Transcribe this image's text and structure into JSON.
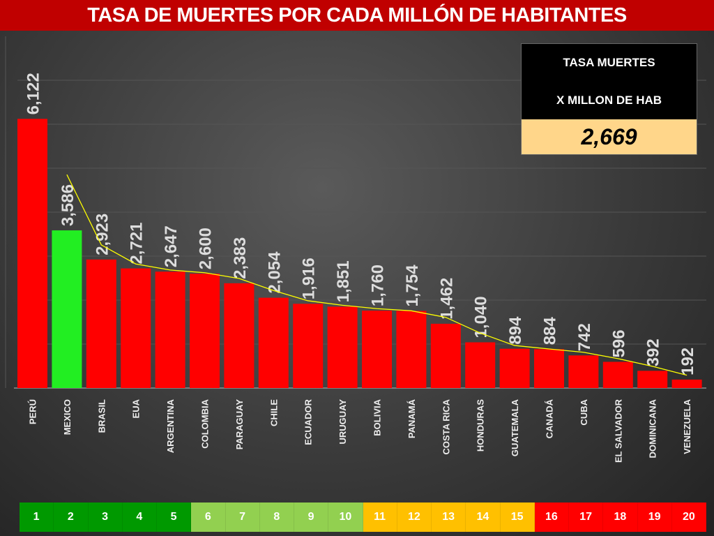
{
  "title": "TASA DE MUERTES POR CADA MILLÓN DE HABITANTES",
  "kpi": {
    "line1": "TASA MUERTES",
    "line2": "X MILLON DE HAB",
    "value": "2,669",
    "value_bg": "#ffd68a"
  },
  "chart_data": {
    "type": "bar",
    "title": "TASA DE MUERTES POR CADA MILLÓN DE HABITANTES",
    "categories": [
      "PERÚ",
      "MEXICO",
      "BRASIL",
      "EUA",
      "ARGENTINA",
      "COLOMBIA",
      "PARAGUAY",
      "CHILE",
      "ECUADOR",
      "URUGUAY",
      "BOLIVIA",
      "PANAMÁ",
      "COSTA RICA",
      "HONDURAS",
      "GUATEMALA",
      "CANADÁ",
      "CUBA",
      "EL SALVADOR",
      "DOMINICANA",
      "VENEZUELA"
    ],
    "values": [
      6122,
      3586,
      2923,
      2721,
      2647,
      2600,
      2383,
      2054,
      1916,
      1851,
      1760,
      1754,
      1462,
      1040,
      894,
      884,
      742,
      596,
      392,
      192
    ],
    "data_labels": [
      "6,122",
      "3,586",
      "2,923",
      "2,721",
      "2,647",
      "2,600",
      "2,383",
      "2,054",
      "1,916",
      "1,851",
      "1,760",
      "1,754",
      "1,462",
      "1,040",
      "894",
      "884",
      "742",
      "596",
      "392",
      "192"
    ],
    "bar_color": "#ff0000",
    "highlight": {
      "category": "MEXICO",
      "color": "#22ee22"
    },
    "trendline": {
      "type": "moving-average",
      "period": 2,
      "color": "#ffff00"
    },
    "ylim": [
      0,
      7000
    ],
    "grid": true,
    "xlabel": "",
    "ylabel": ""
  },
  "rank_bar": [
    {
      "label": "1",
      "color": "#009900"
    },
    {
      "label": "2",
      "color": "#009900"
    },
    {
      "label": "3",
      "color": "#009900"
    },
    {
      "label": "4",
      "color": "#009900"
    },
    {
      "label": "5",
      "color": "#009900"
    },
    {
      "label": "6",
      "color": "#92d050"
    },
    {
      "label": "7",
      "color": "#92d050"
    },
    {
      "label": "8",
      "color": "#92d050"
    },
    {
      "label": "9",
      "color": "#92d050"
    },
    {
      "label": "10",
      "color": "#92d050"
    },
    {
      "label": "11",
      "color": "#ffc000"
    },
    {
      "label": "12",
      "color": "#ffc000"
    },
    {
      "label": "13",
      "color": "#ffc000"
    },
    {
      "label": "14",
      "color": "#ffc000"
    },
    {
      "label": "15",
      "color": "#ffc000"
    },
    {
      "label": "16",
      "color": "#ff0000"
    },
    {
      "label": "17",
      "color": "#ff0000"
    },
    {
      "label": "18",
      "color": "#ff0000"
    },
    {
      "label": "19",
      "color": "#ff0000"
    },
    {
      "label": "20",
      "color": "#ff0000"
    }
  ]
}
